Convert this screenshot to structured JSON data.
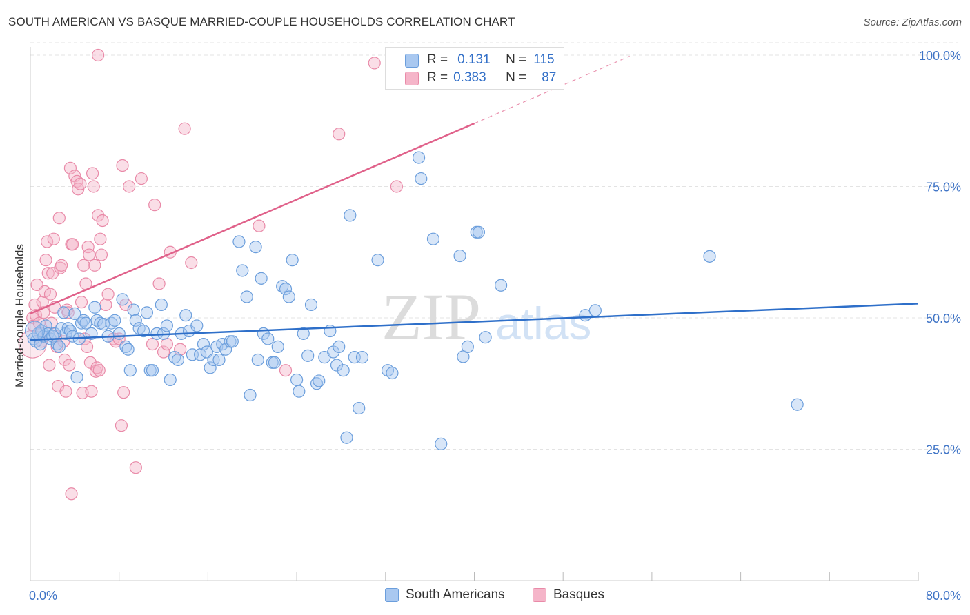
{
  "title": "SOUTH AMERICAN VS BASQUE MARRIED-COUPLE HOUSEHOLDS CORRELATION CHART",
  "source": "Source: ZipAtlas.com",
  "watermark": {
    "part1": "ZIP",
    "part2": "atlas"
  },
  "colors": {
    "blue_fill": "#a9c8f0",
    "blue_stroke": "#6b9edc",
    "blue_line": "#2e6fc9",
    "pink_fill": "#f5b5c9",
    "pink_stroke": "#e98aa8",
    "pink_line": "#e0618a",
    "axis_text": "#3f74c6",
    "grid": "#e3e3e3"
  },
  "stats": {
    "row1": {
      "r_label": "R =",
      "r_value": "0.131",
      "n_label": "N =",
      "n_value": "115"
    },
    "row2": {
      "r_label": "R =",
      "r_value": "0.383",
      "n_label": "N =",
      "n_value": "87"
    }
  },
  "legend": {
    "south": "South Americans",
    "basque": "Basques"
  },
  "chart_data": {
    "type": "scatter",
    "title": "SOUTH AMERICAN VS BASQUE MARRIED-COUPLE HOUSEHOLDS CORRELATION CHART",
    "xlabel": "",
    "ylabel": "Married-couple Households",
    "xlim": [
      0,
      80
    ],
    "ylim": [
      0,
      102
    ],
    "x_tick_labels": [
      "0.0%",
      "80.0%"
    ],
    "y_ticks": [
      25,
      50,
      75,
      100
    ],
    "y_tick_labels": [
      "25.0%",
      "50.0%",
      "75.0%",
      "100.0%"
    ],
    "grid": true,
    "legend_position": "bottom",
    "series": [
      {
        "name": "South Americans",
        "r": 0.131,
        "n": 115,
        "trend": {
          "x0": 0,
          "y0": 45.8,
          "x1": 80,
          "y1": 52.7
        },
        "points": [
          [
            0.3,
            46
          ],
          [
            0.5,
            45.5
          ],
          [
            0.7,
            47
          ],
          [
            0.9,
            45
          ],
          [
            1.0,
            47.5
          ],
          [
            1.2,
            46.5
          ],
          [
            1.4,
            48.5
          ],
          [
            1.6,
            47
          ],
          [
            1.8,
            46
          ],
          [
            2.0,
            46.5
          ],
          [
            2.2,
            47
          ],
          [
            2.4,
            45
          ],
          [
            2.6,
            44.5
          ],
          [
            2.8,
            48
          ],
          [
            3.0,
            51
          ],
          [
            3.2,
            47
          ],
          [
            3.4,
            48
          ],
          [
            3.6,
            47.5
          ],
          [
            3.8,
            46.5
          ],
          [
            4.0,
            50.8
          ],
          [
            4.2,
            38.7
          ],
          [
            4.4,
            46
          ],
          [
            4.6,
            49
          ],
          [
            4.8,
            49.5
          ],
          [
            5.0,
            49
          ],
          [
            5.5,
            47
          ],
          [
            5.8,
            52
          ],
          [
            6.0,
            49.5
          ],
          [
            6.3,
            49
          ],
          [
            6.6,
            48.8
          ],
          [
            7.0,
            46.5
          ],
          [
            7.3,
            49
          ],
          [
            7.6,
            49.5
          ],
          [
            8.0,
            47
          ],
          [
            8.3,
            53.5
          ],
          [
            8.6,
            44.5
          ],
          [
            8.8,
            44
          ],
          [
            9.0,
            40
          ],
          [
            9.3,
            51.5
          ],
          [
            9.5,
            49.5
          ],
          [
            9.8,
            48
          ],
          [
            10.2,
            47.5
          ],
          [
            10.5,
            51
          ],
          [
            10.8,
            40
          ],
          [
            11.0,
            40
          ],
          [
            11.4,
            47
          ],
          [
            11.8,
            52.5
          ],
          [
            12.0,
            47
          ],
          [
            12.3,
            48.5
          ],
          [
            12.6,
            38.2
          ],
          [
            13.0,
            42.5
          ],
          [
            13.3,
            42
          ],
          [
            13.6,
            47
          ],
          [
            14.0,
            50.5
          ],
          [
            14.3,
            47.5
          ],
          [
            14.6,
            43
          ],
          [
            15.0,
            48.5
          ],
          [
            15.3,
            43
          ],
          [
            15.6,
            45
          ],
          [
            15.9,
            43.5
          ],
          [
            16.2,
            40.5
          ],
          [
            16.5,
            42
          ],
          [
            16.8,
            44.5
          ],
          [
            17.0,
            42
          ],
          [
            17.3,
            45
          ],
          [
            17.6,
            44
          ],
          [
            18.0,
            45.5
          ],
          [
            18.2,
            45.5
          ],
          [
            18.8,
            64.5
          ],
          [
            19.1,
            59
          ],
          [
            19.5,
            54
          ],
          [
            19.8,
            35.3
          ],
          [
            20.3,
            63.5
          ],
          [
            20.5,
            42
          ],
          [
            20.8,
            57.5
          ],
          [
            21.0,
            47
          ],
          [
            21.4,
            46
          ],
          [
            21.8,
            41.5
          ],
          [
            22.0,
            41.5
          ],
          [
            22.3,
            44.5
          ],
          [
            22.7,
            56
          ],
          [
            23.0,
            55.5
          ],
          [
            23.3,
            54
          ],
          [
            23.6,
            61
          ],
          [
            24.0,
            38.2
          ],
          [
            24.2,
            36
          ],
          [
            24.6,
            47
          ],
          [
            25.0,
            42.8
          ],
          [
            25.3,
            52.5
          ],
          [
            25.8,
            37.5
          ],
          [
            26.0,
            38
          ],
          [
            26.5,
            42.5
          ],
          [
            27.0,
            47.5
          ],
          [
            27.3,
            43.5
          ],
          [
            27.6,
            41
          ],
          [
            27.8,
            44.5
          ],
          [
            28.2,
            40
          ],
          [
            28.5,
            27.2
          ],
          [
            28.8,
            69.5
          ],
          [
            29.2,
            42.5
          ],
          [
            29.6,
            32.8
          ],
          [
            29.9,
            42.5
          ],
          [
            31.3,
            61
          ],
          [
            32.2,
            40
          ],
          [
            32.6,
            39.5
          ],
          [
            35.0,
            80.5
          ],
          [
            35.2,
            76.5
          ],
          [
            36.3,
            65
          ],
          [
            37.0,
            26
          ],
          [
            38.7,
            61.8
          ],
          [
            39.0,
            42.6
          ],
          [
            39.4,
            44.5
          ],
          [
            40.2,
            66.3
          ],
          [
            40.4,
            66.3
          ],
          [
            41.0,
            46.3
          ],
          [
            42.4,
            56.2
          ],
          [
            50.0,
            50.5
          ],
          [
            50.9,
            51.4
          ],
          [
            61.2,
            61.7
          ],
          [
            69.1,
            33.5
          ]
        ]
      },
      {
        "name": "Basques",
        "r": 0.383,
        "n": 87,
        "trend": {
          "x0": 0,
          "y0": 50.8,
          "x1": 40,
          "y1": 87.0,
          "dash_x1": 54,
          "dash_y1": 99.8
        },
        "points": [
          [
            0.2,
            50
          ],
          [
            0.3,
            48.5
          ],
          [
            0.4,
            52.5
          ],
          [
            0.5,
            50.5
          ],
          [
            0.6,
            56.3
          ],
          [
            0.8,
            49
          ],
          [
            0.9,
            47
          ],
          [
            1.0,
            45.5
          ],
          [
            1.1,
            53
          ],
          [
            1.2,
            51
          ],
          [
            1.3,
            55
          ],
          [
            1.4,
            61
          ],
          [
            1.5,
            64.5
          ],
          [
            1.6,
            58.5
          ],
          [
            1.7,
            41
          ],
          [
            1.8,
            54.5
          ],
          [
            1.9,
            49
          ],
          [
            2.0,
            58.5
          ],
          [
            2.1,
            65
          ],
          [
            2.2,
            52
          ],
          [
            2.3,
            46.5
          ],
          [
            2.4,
            44.5
          ],
          [
            2.5,
            37
          ],
          [
            2.6,
            69
          ],
          [
            2.7,
            59.5
          ],
          [
            2.8,
            60
          ],
          [
            3.0,
            45.5
          ],
          [
            3.1,
            42
          ],
          [
            3.2,
            36
          ],
          [
            3.3,
            51.5
          ],
          [
            3.4,
            51
          ],
          [
            3.5,
            41
          ],
          [
            3.6,
            78.5
          ],
          [
            3.7,
            64
          ],
          [
            3.8,
            64
          ],
          [
            4.0,
            77
          ],
          [
            4.2,
            76
          ],
          [
            4.3,
            74.5
          ],
          [
            4.5,
            75.5
          ],
          [
            4.6,
            53
          ],
          [
            4.7,
            35.7
          ],
          [
            4.8,
            60
          ],
          [
            4.9,
            46
          ],
          [
            5.0,
            56.5
          ],
          [
            5.1,
            44.5
          ],
          [
            5.2,
            63.5
          ],
          [
            5.3,
            62
          ],
          [
            5.4,
            41.5
          ],
          [
            5.5,
            36
          ],
          [
            5.6,
            77.5
          ],
          [
            5.7,
            75
          ],
          [
            5.8,
            60
          ],
          [
            5.9,
            39.8
          ],
          [
            6.0,
            40.5
          ],
          [
            6.1,
            69.5
          ],
          [
            6.2,
            40
          ],
          [
            6.3,
            65
          ],
          [
            6.4,
            62
          ],
          [
            6.5,
            68.5
          ],
          [
            6.8,
            52.5
          ],
          [
            7.0,
            54.5
          ],
          [
            7.5,
            46
          ],
          [
            7.7,
            45.5
          ],
          [
            8.0,
            46
          ],
          [
            8.2,
            29.5
          ],
          [
            8.3,
            79
          ],
          [
            8.4,
            35.8
          ],
          [
            8.6,
            52.5
          ],
          [
            8.9,
            75
          ],
          [
            9.5,
            21.5
          ],
          [
            10.0,
            76.5
          ],
          [
            11.0,
            45
          ],
          [
            11.2,
            71.5
          ],
          [
            11.6,
            56.5
          ],
          [
            12.0,
            43.5
          ],
          [
            12.3,
            45
          ],
          [
            12.6,
            62.5
          ],
          [
            13.5,
            44
          ],
          [
            13.9,
            86
          ],
          [
            14.5,
            60.5
          ],
          [
            3.7,
            16.5
          ],
          [
            6.1,
            100
          ],
          [
            20.6,
            67.5
          ],
          [
            23.0,
            40
          ],
          [
            27.8,
            85
          ],
          [
            31.0,
            98.5
          ],
          [
            33.0,
            75
          ]
        ]
      }
    ]
  }
}
